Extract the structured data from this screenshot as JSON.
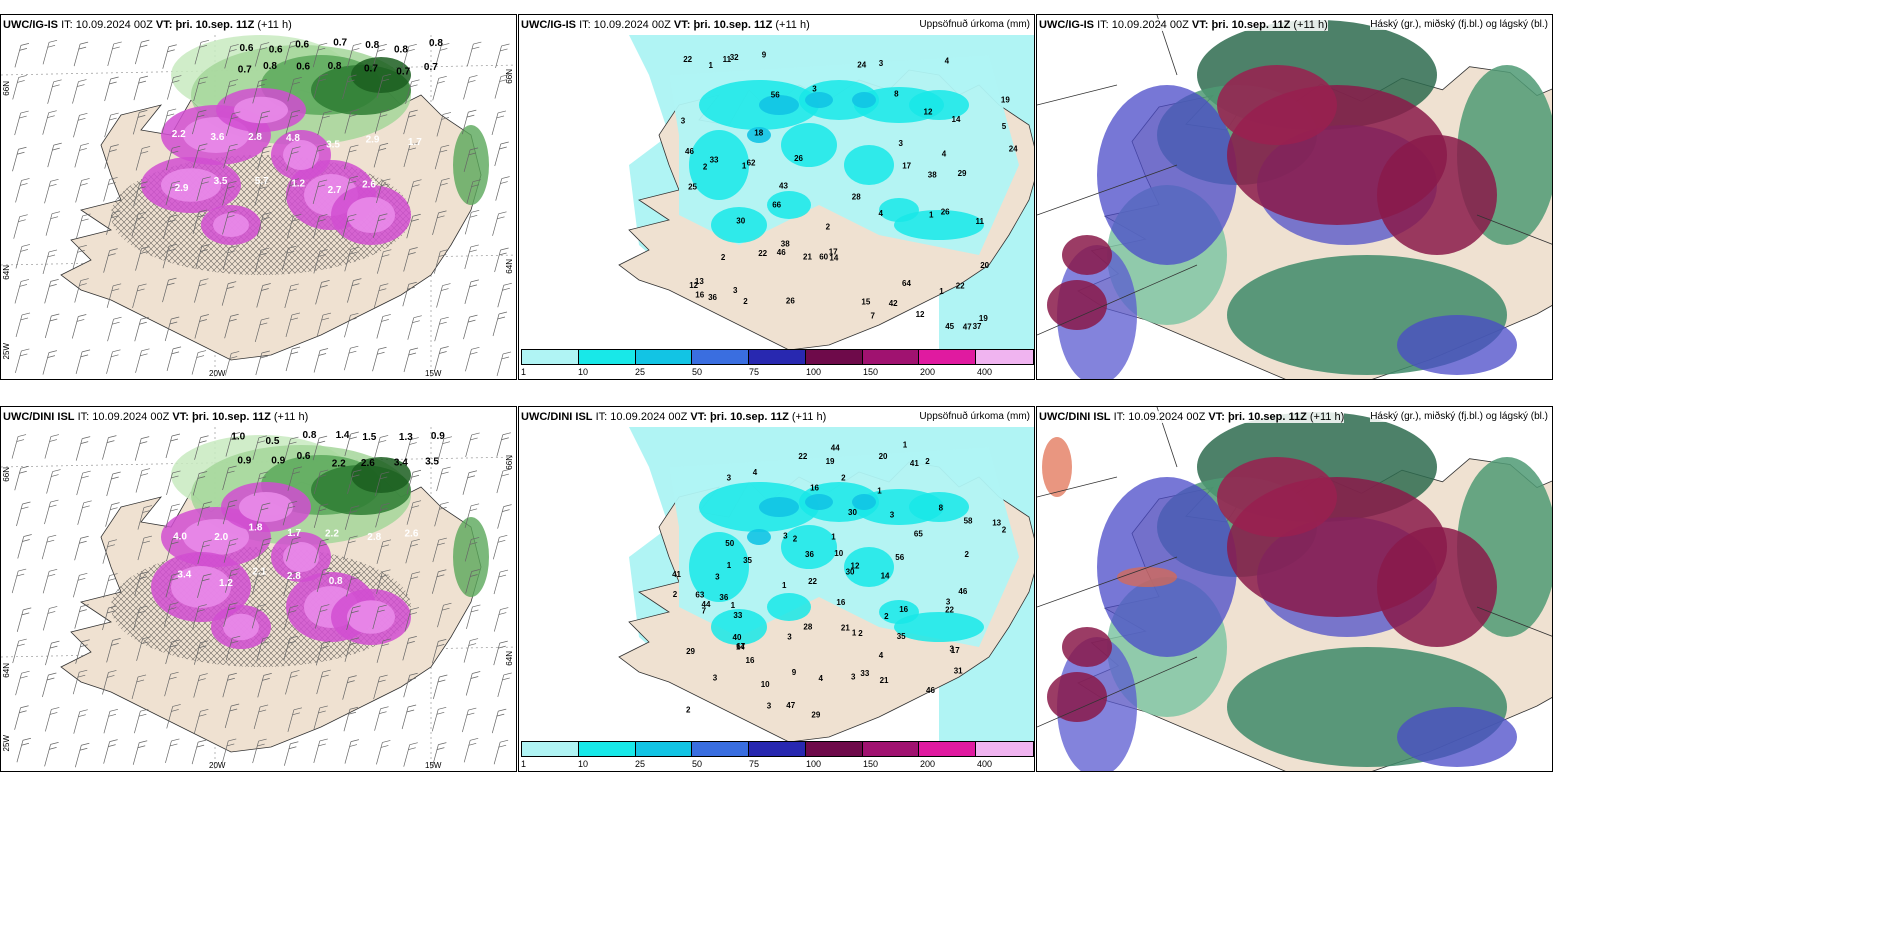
{
  "rows": [
    {
      "model": "UWC/IG-IS",
      "it_label": "IT:",
      "it_value": "10.09.2024 00Z",
      "vt_label": "VT:",
      "vt_value": "þri. 10.sep. 11Z",
      "lead": "(+11 h)",
      "wind_values": [
        "0.6",
        "0.6",
        "0.6",
        "0.7",
        "0.8",
        "0.8",
        "0.8",
        "0.7",
        "0.8",
        "0.6",
        "0.8",
        "0.7",
        "0.7",
        "0.7",
        "2.2",
        "3.6",
        "2.8",
        "4.8",
        "3.5",
        "2.9",
        "1.7",
        "2.9",
        "3.5",
        "5.7",
        "1.2",
        "2.7",
        "2.6"
      ],
      "precip_values": [
        "2",
        "1",
        "11",
        "26",
        "37",
        "56",
        "60",
        "66",
        "46",
        "38",
        "29",
        "24",
        "22",
        "45",
        "43",
        "64",
        "28",
        "24",
        "19",
        "26",
        "47",
        "62",
        "42",
        "22",
        "22",
        "17",
        "15",
        "13",
        "14",
        "12",
        "38",
        "21",
        "36",
        "20",
        "12",
        "46",
        "33",
        "32",
        "30",
        "26",
        "25",
        "19",
        "11",
        "12",
        "14",
        "16",
        "17",
        "18",
        "9",
        "8",
        "7",
        "4",
        "4",
        "4",
        "5",
        "3",
        "2",
        "1",
        "2",
        "3",
        "3",
        "3",
        "3",
        "1",
        "1",
        "2"
      ]
    },
    {
      "model": "UWC/DINI ISL",
      "it_label": "IT:",
      "it_value": "10.09.2024 00Z",
      "vt_label": "VT:",
      "vt_value": "þri. 10.sep. 11Z",
      "lead": "(+11 h)",
      "wind_values": [
        "1.0",
        "0.5",
        "0.8",
        "1.4",
        "1.5",
        "1.3",
        "0.9",
        "0.9",
        "0.9",
        "0.6",
        "2.2",
        "2.6",
        "3.4",
        "3.5",
        "4.0",
        "2.0",
        "1.8",
        "1.7",
        "2.2",
        "2.8",
        "2.6",
        "3.4",
        "1.2",
        "2.1",
        "2.8",
        "0.8"
      ],
      "precip_values": [
        "3",
        "2",
        "4",
        "8",
        "1",
        "35",
        "33",
        "67",
        "58",
        "65",
        "63",
        "44",
        "35",
        "30",
        "29",
        "22",
        "31",
        "41",
        "14",
        "47",
        "21",
        "19",
        "16",
        "12",
        "10",
        "9",
        "44",
        "20",
        "30",
        "16",
        "50",
        "16",
        "33",
        "21",
        "17",
        "7",
        "13",
        "14",
        "3",
        "3",
        "2",
        "2",
        "4",
        "1",
        "2",
        "1",
        "2",
        "3",
        "3",
        "4",
        "2",
        "3",
        "1",
        "2",
        "1",
        "2",
        "3",
        "3",
        "3",
        "3",
        "2",
        "1",
        "1",
        "22",
        "28",
        "29",
        "40",
        "56",
        "46",
        "46",
        "22",
        "10",
        "36",
        "36",
        "41",
        "16"
      ]
    }
  ],
  "panels": {
    "left": {
      "lon_labels": [
        "20W",
        "15W",
        "25W"
      ],
      "lat_labels": [
        "66N",
        "64N"
      ]
    },
    "middle": {
      "variable": "Uppsöfnuð úrkoma (mm)",
      "colorbar": {
        "colors": [
          "#b0f4f4",
          "#18e8e8",
          "#12c4e4",
          "#3a6ee0",
          "#2828b0",
          "#6e0a4a",
          "#a01270",
          "#e01aa0",
          "#f0b4f0"
        ],
        "ticks": [
          "1",
          "10",
          "25",
          "50",
          "75",
          "100",
          "150",
          "200",
          "400"
        ]
      }
    },
    "right": {
      "variable": "Háský (gr.), miðský (fj.bl.) og lágský (bl.)"
    }
  }
}
